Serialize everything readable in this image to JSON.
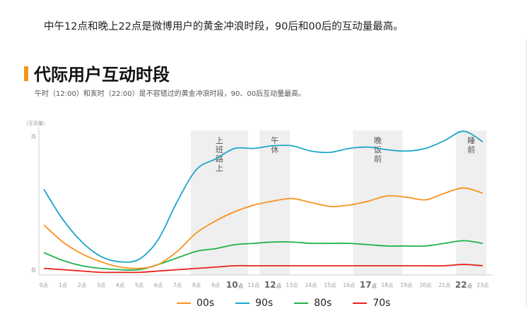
{
  "header": {
    "lead": "中午12点和晚上22点是微博用户的黄金冲浪时段，90后和00后的互动量最高。",
    "title": "代际用户互动时段",
    "subtitle": "午时（12:00）和亥时（22:00）是不容错过的黄金冲浪时段，90、00后互动量最高。"
  },
  "colors": {
    "accent": "#f7931e",
    "band": "#efefef",
    "axis": "#cccccc"
  },
  "chart_data": {
    "type": "line",
    "ylabel": "（互动量）",
    "y_high_label": "高",
    "y_low_label": "低",
    "categories": [
      "0点",
      "1点",
      "2点",
      "3点",
      "4点",
      "5点",
      "6点",
      "7点",
      "8点",
      "9点",
      "10点",
      "11点",
      "12点",
      "13点",
      "14点",
      "15点",
      "16点",
      "17点",
      "18点",
      "19点",
      "20点",
      "21点",
      "22点",
      "23点"
    ],
    "highlight_ticks": [
      "10点",
      "12点",
      "17点",
      "22点"
    ],
    "ylim": [
      0,
      100
    ],
    "bands": [
      {
        "label": "上班路上",
        "from": 7.7,
        "to": 10.7
      },
      {
        "label": "午休",
        "from": 11.3,
        "to": 12.9
      },
      {
        "label": "晚饭前",
        "from": 16.2,
        "to": 18.8
      },
      {
        "label": "睡前",
        "from": 21.6,
        "to": 23.2
      }
    ],
    "series": [
      {
        "name": "00s",
        "color": "#f7931e",
        "values": [
          38,
          25,
          16,
          10,
          6,
          5,
          8,
          18,
          32,
          41,
          48,
          53,
          56,
          58,
          55,
          52,
          53,
          56,
          60,
          59,
          57,
          62,
          66,
          62
        ]
      },
      {
        "name": "90s",
        "color": "#1ba6c9",
        "values": [
          65,
          42,
          25,
          14,
          10,
          12,
          27,
          56,
          80,
          88,
          96,
          96,
          98,
          98,
          94,
          93,
          96,
          97,
          95,
          94,
          96,
          102,
          109,
          101
        ]
      },
      {
        "name": "80s",
        "color": "#1fb14a",
        "values": [
          17,
          11,
          7,
          5,
          4,
          4,
          8,
          13,
          18,
          20,
          23,
          24,
          25,
          25,
          24,
          24,
          24,
          23,
          22,
          22,
          22,
          24,
          26,
          24
        ]
      },
      {
        "name": "70s",
        "color": "#e8221b",
        "values": [
          5,
          4,
          3,
          2,
          2,
          2,
          3,
          4,
          5,
          6,
          7,
          7,
          7,
          7,
          7,
          7,
          7,
          7,
          7,
          7,
          7,
          7,
          8,
          7
        ]
      }
    ]
  },
  "legend": {
    "items": [
      "00s",
      "90s",
      "80s",
      "70s"
    ]
  }
}
